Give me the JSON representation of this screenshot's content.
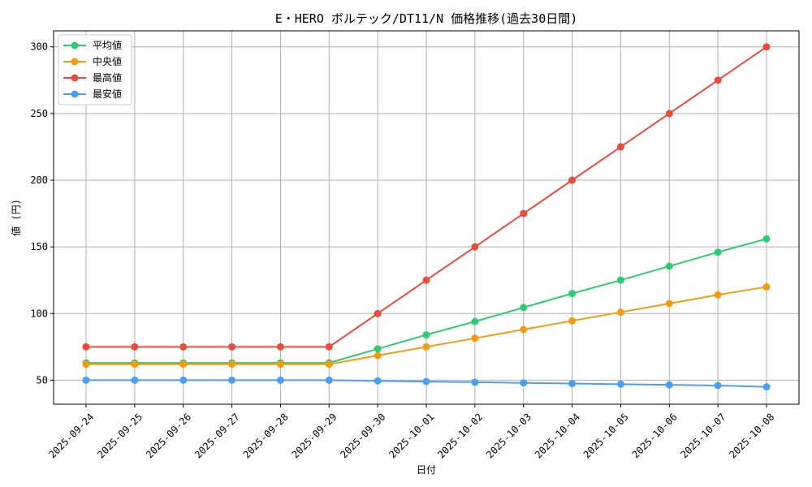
{
  "chart_data": {
    "type": "line",
    "title": "E・HERO ボルテック/DT11/N 価格推移(過去30日間)",
    "xlabel": "日付",
    "ylabel": "値 (円)",
    "categories": [
      "2025-09-24",
      "2025-09-25",
      "2025-09-26",
      "2025-09-27",
      "2025-09-28",
      "2025-09-29",
      "2025-09-30",
      "2025-10-01",
      "2025-10-02",
      "2025-10-03",
      "2025-10-04",
      "2025-10-05",
      "2025-10-06",
      "2025-10-07",
      "2025-10-08"
    ],
    "ylim": [
      32,
      312
    ],
    "yticks": [
      50,
      100,
      150,
      200,
      250,
      300
    ],
    "grid": true,
    "legend_position": "top-left",
    "series": [
      {
        "name": "平均値",
        "color": "#2ecc71",
        "values": [
          63,
          63,
          63,
          63,
          63,
          63,
          73.5,
          84,
          94,
          104.5,
          115,
          125,
          135.5,
          146,
          156
        ]
      },
      {
        "name": "中央値",
        "color": "#f39c12",
        "values": [
          62,
          62,
          62,
          62,
          62,
          62,
          68.5,
          75,
          81.5,
          88,
          94.5,
          101,
          107.5,
          114,
          120
        ]
      },
      {
        "name": "最高値",
        "color": "#e74c3c",
        "values": [
          75,
          75,
          75,
          75,
          75,
          75,
          100,
          125,
          150,
          175,
          200,
          225,
          250,
          275,
          300
        ]
      },
      {
        "name": "最安値",
        "color": "#4a9ff5",
        "values": [
          50,
          50,
          50,
          50,
          50,
          50,
          49.5,
          49,
          48.5,
          48,
          47.5,
          47,
          46.5,
          46,
          45
        ]
      }
    ]
  }
}
